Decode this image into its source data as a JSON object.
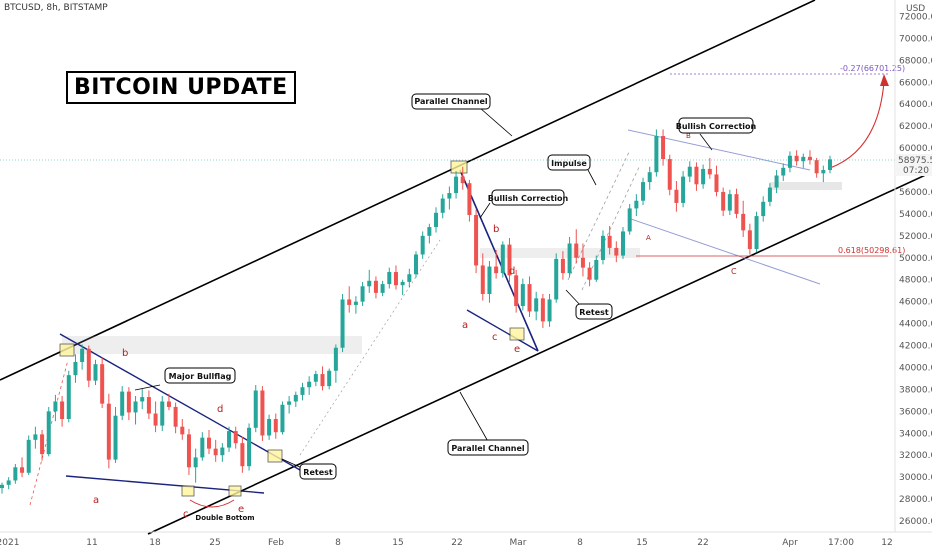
{
  "header": {
    "symbol": "BTCUSD, 8h, BITSTAMP"
  },
  "title": "BITCOIN UPDATE",
  "colors": {
    "up": "#26a69a",
    "down": "#ef5350",
    "line": "#000000",
    "wedge": "#1a237e",
    "fib": "#d32f2f",
    "fib_ext": "#7e57c2"
  },
  "price_axis": {
    "unit": "USD",
    "current_price": "58975.58",
    "countdown": "07:20",
    "ticks": [
      "72000.00",
      "70000.00",
      "68000.00",
      "66000.00",
      "64000.00",
      "62000.00",
      "60000.00",
      "58000.00",
      "56000.00",
      "54000.00",
      "52000.00",
      "50000.00",
      "48000.00",
      "46000.00",
      "44000.00",
      "42000.00",
      "40000.00",
      "38000.00",
      "36000.00",
      "34000.00",
      "32000.00",
      "30000.00",
      "28000.00",
      "26000.00"
    ]
  },
  "time_axis": {
    "ticks": [
      "2021",
      "11",
      "18",
      "25",
      "Feb",
      "8",
      "15",
      "22",
      "Mar",
      "8",
      "15",
      "22",
      "Apr",
      "17:00",
      "12"
    ]
  },
  "annotations": {
    "parallel_channel_top": "Parallel Channel",
    "parallel_channel_bottom": "Parallel Channel",
    "major_bullflag": "Major Bullflag",
    "bullish_correction_1": "Bullish Correction",
    "bullish_correction_2": "Bullish Correction",
    "impulse": "Impulse",
    "retest_1": "Retest",
    "retest_2": "Retest",
    "double_bottom": "Double Bottom",
    "fib_618": "0.618(50298.61)",
    "fib_ext": "-0.27(66701.25)"
  },
  "wave_labels": {
    "flag": [
      "a",
      "b",
      "c",
      "d",
      "e"
    ],
    "wedge": [
      "a",
      "b",
      "c",
      "d",
      "e"
    ],
    "correction": [
      "A",
      "B",
      "C"
    ]
  },
  "chart_data": {
    "type": "candlestick",
    "price_range": [
      25000,
      73500
    ],
    "candles": [
      [
        29000,
        29500,
        28500,
        29300
      ],
      [
        29300,
        30000,
        28900,
        29700
      ],
      [
        29700,
        31200,
        29400,
        30900
      ],
      [
        30900,
        31800,
        30000,
        30400
      ],
      [
        30400,
        33800,
        30200,
        33400
      ],
      [
        33400,
        34600,
        32600,
        33900
      ],
      [
        33900,
        34300,
        31500,
        32100
      ],
      [
        32100,
        36400,
        31900,
        36000
      ],
      [
        36000,
        37500,
        35100,
        36900
      ],
      [
        36900,
        37400,
        34600,
        35300
      ],
      [
        35300,
        39700,
        35000,
        39300
      ],
      [
        39300,
        41200,
        38600,
        40500
      ],
      [
        40500,
        42100,
        39800,
        41700
      ],
      [
        41700,
        42000,
        38200,
        38800
      ],
      [
        38800,
        40700,
        38400,
        40300
      ],
      [
        40300,
        40900,
        36300,
        36700
      ],
      [
        36700,
        37600,
        30800,
        31600
      ],
      [
        31600,
        36400,
        31300,
        35600
      ],
      [
        35600,
        38300,
        35200,
        37800
      ],
      [
        37800,
        38200,
        35200,
        35900
      ],
      [
        35900,
        37400,
        34800,
        36900
      ],
      [
        36900,
        38100,
        36200,
        37300
      ],
      [
        37300,
        37900,
        35300,
        35800
      ],
      [
        35800,
        36900,
        34100,
        34700
      ],
      [
        34700,
        37400,
        34200,
        36900
      ],
      [
        36900,
        37600,
        36100,
        36400
      ],
      [
        36400,
        36800,
        34000,
        34600
      ],
      [
        34600,
        35300,
        33400,
        33900
      ],
      [
        33900,
        34400,
        30200,
        30900
      ],
      [
        30900,
        32600,
        29500,
        31800
      ],
      [
        31800,
        34100,
        31500,
        33600
      ],
      [
        33600,
        34300,
        32100,
        32600
      ],
      [
        32600,
        33400,
        31400,
        32000
      ],
      [
        32000,
        33100,
        31400,
        32700
      ],
      [
        32700,
        34600,
        32300,
        34200
      ],
      [
        34200,
        34600,
        32600,
        33100
      ],
      [
        33100,
        33700,
        30400,
        31000
      ],
      [
        31000,
        34900,
        30600,
        34500
      ],
      [
        34500,
        38400,
        34100,
        37900
      ],
      [
        37900,
        38300,
        33300,
        33800
      ],
      [
        33800,
        35700,
        33400,
        35300
      ],
      [
        35300,
        35800,
        33500,
        34100
      ],
      [
        34100,
        36900,
        33900,
        36600
      ],
      [
        36600,
        37400,
        35800,
        36900
      ],
      [
        36900,
        37800,
        36400,
        37500
      ],
      [
        37500,
        38600,
        37000,
        38200
      ],
      [
        38200,
        39200,
        37500,
        38700
      ],
      [
        38700,
        39700,
        38300,
        39400
      ],
      [
        39400,
        40100,
        37900,
        38300
      ],
      [
        38300,
        39900,
        38000,
        39700
      ],
      [
        39700,
        42100,
        38600,
        41800
      ],
      [
        41800,
        46700,
        41400,
        46200
      ],
      [
        46200,
        47400,
        45000,
        45700
      ],
      [
        45700,
        46500,
        44900,
        46000
      ],
      [
        46000,
        47800,
        45600,
        47400
      ],
      [
        47400,
        48900,
        46800,
        47900
      ],
      [
        47900,
        48300,
        46300,
        46800
      ],
      [
        46800,
        47900,
        46500,
        47600
      ],
      [
        47600,
        49100,
        47200,
        48700
      ],
      [
        48700,
        49300,
        47100,
        47500
      ],
      [
        47500,
        48000,
        46600,
        47800
      ],
      [
        47800,
        49000,
        47300,
        48500
      ],
      [
        48500,
        50600,
        48200,
        50300
      ],
      [
        50300,
        52400,
        49900,
        52000
      ],
      [
        52000,
        53100,
        51300,
        52800
      ],
      [
        52800,
        54600,
        52300,
        54100
      ],
      [
        54100,
        55800,
        53600,
        55400
      ],
      [
        55400,
        56500,
        54400,
        55900
      ],
      [
        55900,
        57900,
        55400,
        57400
      ],
      [
        57400,
        58300,
        56200,
        56800
      ],
      [
        56800,
        57100,
        53300,
        53900
      ],
      [
        53900,
        54400,
        48600,
        49300
      ],
      [
        49300,
        50400,
        46100,
        46700
      ],
      [
        46700,
        49700,
        45900,
        49200
      ],
      [
        49200,
        50700,
        48100,
        48600
      ],
      [
        48600,
        51500,
        48200,
        51200
      ],
      [
        51200,
        51800,
        47800,
        48400
      ],
      [
        48400,
        48900,
        45000,
        45600
      ],
      [
        45600,
        48100,
        45200,
        47600
      ],
      [
        47600,
        48300,
        44600,
        45100
      ],
      [
        45100,
        46900,
        44300,
        46300
      ],
      [
        46300,
        46700,
        43600,
        44200
      ],
      [
        44200,
        46700,
        43700,
        46200
      ],
      [
        46200,
        50400,
        45900,
        49900
      ],
      [
        49900,
        50600,
        48000,
        48600
      ],
      [
        48600,
        51900,
        48200,
        51300
      ],
      [
        51300,
        52600,
        49500,
        50000
      ],
      [
        50000,
        51300,
        48300,
        49100
      ],
      [
        49100,
        49600,
        47400,
        48000
      ],
      [
        48000,
        50200,
        47800,
        49800
      ],
      [
        49800,
        52500,
        49400,
        52000
      ],
      [
        52000,
        52900,
        50300,
        50900
      ],
      [
        50900,
        51500,
        49600,
        50200
      ],
      [
        50200,
        52800,
        49900,
        52400
      ],
      [
        52400,
        54900,
        52100,
        54500
      ],
      [
        54500,
        55800,
        53800,
        55200
      ],
      [
        55200,
        57300,
        54800,
        56900
      ],
      [
        56900,
        58300,
        56200,
        57800
      ],
      [
        57800,
        61700,
        57400,
        61100
      ],
      [
        61100,
        61700,
        58400,
        59000
      ],
      [
        59000,
        59400,
        55700,
        56200
      ],
      [
        56200,
        57000,
        54200,
        55000
      ],
      [
        55000,
        57900,
        54600,
        57400
      ],
      [
        57400,
        58800,
        56900,
        58300
      ],
      [
        58300,
        58700,
        56100,
        56700
      ],
      [
        56700,
        58500,
        56300,
        58100
      ],
      [
        58100,
        59100,
        57200,
        57600
      ],
      [
        57600,
        58400,
        55600,
        56000
      ],
      [
        56000,
        56400,
        53800,
        54300
      ],
      [
        54300,
        56200,
        53900,
        55800
      ],
      [
        55800,
        56300,
        53600,
        54000
      ],
      [
        54000,
        55200,
        51900,
        52500
      ],
      [
        52500,
        53100,
        50300,
        50800
      ],
      [
        50800,
        54200,
        50500,
        53800
      ],
      [
        53800,
        55600,
        53300,
        55100
      ],
      [
        55100,
        56800,
        54700,
        56400
      ],
      [
        56400,
        58000,
        55900,
        57500
      ],
      [
        57500,
        58600,
        57000,
        58200
      ],
      [
        58200,
        59700,
        57800,
        59300
      ],
      [
        59300,
        59800,
        58400,
        58800
      ],
      [
        58800,
        59500,
        58200,
        59200
      ],
      [
        59200,
        59800,
        58500,
        58900
      ],
      [
        58900,
        59100,
        57300,
        57700
      ],
      [
        57700,
        58400,
        56900,
        58000
      ],
      [
        58000,
        59300,
        57700,
        58976
      ]
    ]
  }
}
